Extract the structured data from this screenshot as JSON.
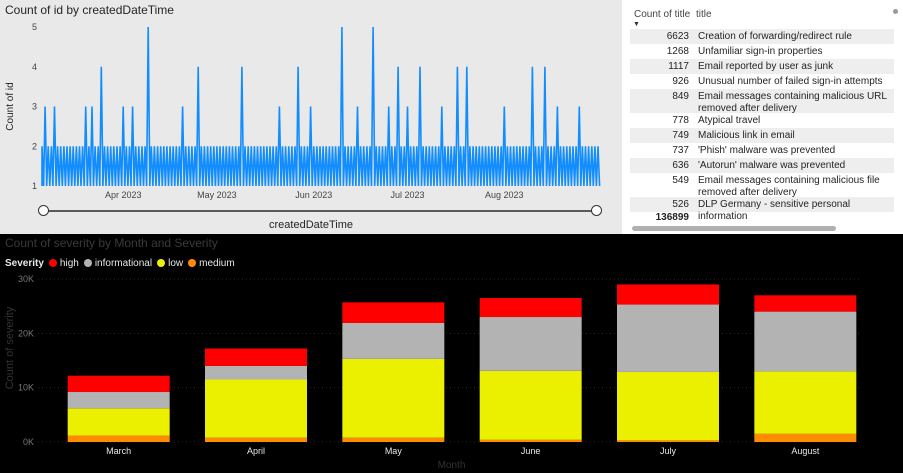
{
  "chart_data": [
    {
      "type": "line",
      "title": "Count of id by createdDateTime",
      "xlabel": "createdDateTime",
      "ylabel": "Count of id",
      "ylim": [
        1,
        5
      ],
      "yticks": [
        "1",
        "2",
        "3",
        "4",
        "5"
      ],
      "xticks": [
        "Apr 2023",
        "May 2023",
        "Jun 2023",
        "Jul 2023",
        "Aug 2023"
      ],
      "x_range": [
        "2023-03-06",
        "2023-08-31"
      ],
      "color": "#118dff",
      "baseline": 1,
      "spikes": [
        {
          "date": "2023-03-07",
          "value": 3
        },
        {
          "date": "2023-03-10",
          "value": 3
        },
        {
          "date": "2023-03-20",
          "value": 3
        },
        {
          "date": "2023-03-22",
          "value": 3
        },
        {
          "date": "2023-03-25",
          "value": 4
        },
        {
          "date": "2023-04-01",
          "value": 3
        },
        {
          "date": "2023-04-04",
          "value": 3
        },
        {
          "date": "2023-04-09",
          "value": 5
        },
        {
          "date": "2023-04-20",
          "value": 3
        },
        {
          "date": "2023-04-25",
          "value": 4
        },
        {
          "date": "2023-05-09",
          "value": 4
        },
        {
          "date": "2023-05-21",
          "value": 3
        },
        {
          "date": "2023-05-27",
          "value": 4
        },
        {
          "date": "2023-05-31",
          "value": 3
        },
        {
          "date": "2023-06-10",
          "value": 5
        },
        {
          "date": "2023-06-15",
          "value": 3
        },
        {
          "date": "2023-06-20",
          "value": 5
        },
        {
          "date": "2023-06-25",
          "value": 3
        },
        {
          "date": "2023-06-28",
          "value": 4
        },
        {
          "date": "2023-07-01",
          "value": 3
        },
        {
          "date": "2023-07-05",
          "value": 4
        },
        {
          "date": "2023-07-12",
          "value": 3
        },
        {
          "date": "2023-07-17",
          "value": 4
        },
        {
          "date": "2023-07-20",
          "value": 4
        },
        {
          "date": "2023-08-01",
          "value": 3
        },
        {
          "date": "2023-08-10",
          "value": 4
        },
        {
          "date": "2023-08-14",
          "value": 4
        },
        {
          "date": "2023-08-18",
          "value": 3
        },
        {
          "date": "2023-08-25",
          "value": 3
        }
      ],
      "dense_level": 2
    },
    {
      "type": "bar",
      "stacked": true,
      "title": "Count of severity by Month and Severity",
      "xlabel": "Month",
      "ylabel": "Count of severity",
      "ylim": [
        0,
        30000
      ],
      "yticks": [
        "0K",
        "10K",
        "20K",
        "30K"
      ],
      "legend_title": "Severity",
      "categories": [
        "March",
        "April",
        "May",
        "June",
        "July",
        "August"
      ],
      "series": [
        {
          "name": "medium",
          "color": "#ff8c00",
          "values": [
            1200,
            800,
            800,
            400,
            300,
            1500
          ]
        },
        {
          "name": "low",
          "color": "#ebef00",
          "values": [
            5000,
            10700,
            14500,
            12700,
            12600,
            11500
          ]
        },
        {
          "name": "informational",
          "color": "#b3b3b3",
          "values": [
            3000,
            2500,
            6600,
            9900,
            12400,
            11000
          ]
        },
        {
          "name": "high",
          "color": "#ff0000",
          "values": [
            3000,
            3200,
            3800,
            3500,
            3700,
            3000
          ]
        }
      ]
    }
  ],
  "table": {
    "headers": {
      "count": "Count of title",
      "title": "title"
    },
    "rows": [
      {
        "count": "6623",
        "title": "Creation of forwarding/redirect rule"
      },
      {
        "count": "1268",
        "title": "Unfamiliar sign-in properties"
      },
      {
        "count": "1117",
        "title": "Email reported by user as junk"
      },
      {
        "count": "926",
        "title": "Unusual number of failed sign-in attempts"
      },
      {
        "count": "849",
        "title": "Email messages containing malicious URL removed after delivery"
      },
      {
        "count": "778",
        "title": "Atypical travel"
      },
      {
        "count": "749",
        "title": "Malicious link in email"
      },
      {
        "count": "737",
        "title": "'Phish' malware was prevented"
      },
      {
        "count": "636",
        "title": "'Autorun' malware was prevented"
      },
      {
        "count": "549",
        "title": "Email messages containing malicious file removed after delivery"
      },
      {
        "count": "526",
        "title": "DLP Germany - sensitive personal information"
      }
    ],
    "total": "136899"
  }
}
